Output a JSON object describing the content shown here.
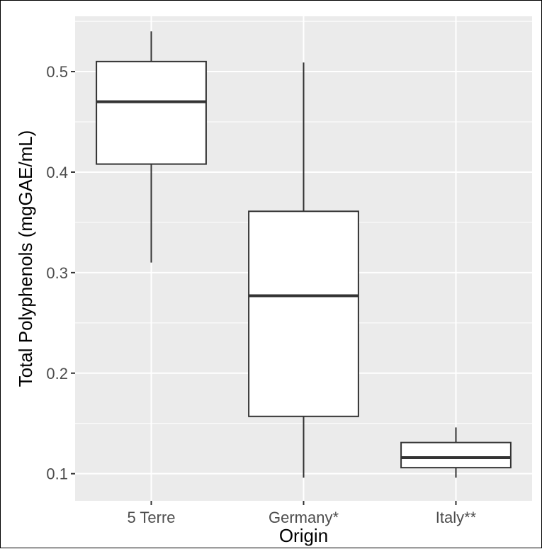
{
  "chart_data": {
    "type": "boxplot",
    "title": "",
    "xlabel": "Origin",
    "ylabel": "Total Polyphenols (mgGAE/mL)",
    "categories": [
      "5 Terre",
      "Germany*",
      "Italy**"
    ],
    "ylim": [
      0.073,
      0.555
    ],
    "yticks": [
      0.1,
      0.2,
      0.3,
      0.4,
      0.5
    ],
    "ytick_labels": [
      "0.1",
      "0.2",
      "0.3",
      "0.4",
      "0.5"
    ],
    "grid": true,
    "legend": "none",
    "boxes": [
      {
        "category": "5 Terre",
        "whisker_low": 0.31,
        "q1": 0.408,
        "median": 0.47,
        "q3": 0.51,
        "whisker_high": 0.54
      },
      {
        "category": "Germany*",
        "whisker_low": 0.096,
        "q1": 0.157,
        "median": 0.277,
        "q3": 0.361,
        "whisker_high": 0.509
      },
      {
        "category": "Italy**",
        "whisker_low": 0.096,
        "q1": 0.106,
        "median": 0.116,
        "q3": 0.131,
        "whisker_high": 0.146
      }
    ],
    "colors": {
      "panel": "#ebebeb",
      "grid_major": "#ffffff",
      "box_fill": "#ffffff",
      "box_stroke": "#333333",
      "tick_text": "#4d4d4d"
    }
  }
}
